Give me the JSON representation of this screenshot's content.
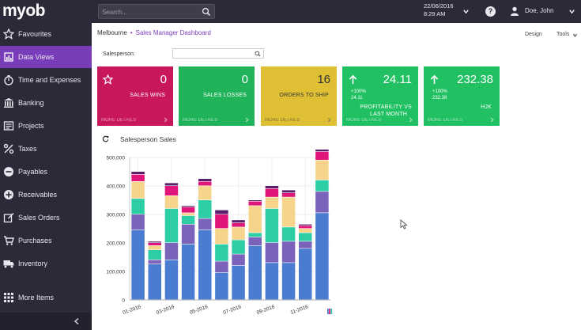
{
  "header": {
    "logo": "myob",
    "search_placeholder": "Search...",
    "date": "22/06/2016",
    "time": "8:29 AM",
    "help_label": "?",
    "user_name": "Doe, John"
  },
  "sidebar": {
    "items": [
      {
        "label": "Favourites",
        "icon": "star-icon"
      },
      {
        "label": "Data Views",
        "icon": "chart-icon",
        "active": true
      },
      {
        "label": "Time and Expenses",
        "icon": "stopwatch-icon"
      },
      {
        "label": "Banking",
        "icon": "bank-icon"
      },
      {
        "label": "Projects",
        "icon": "projects-icon"
      },
      {
        "label": "Taxes",
        "icon": "percent-icon"
      },
      {
        "label": "Payables",
        "icon": "minus-circle-icon"
      },
      {
        "label": "Receivables",
        "icon": "plus-circle-icon"
      },
      {
        "label": "Sales Orders",
        "icon": "edit-icon"
      },
      {
        "label": "Purchases",
        "icon": "cart-icon"
      },
      {
        "label": "Inventory",
        "icon": "truck-icon"
      },
      {
        "label": "More Items",
        "icon": "grid-icon"
      }
    ]
  },
  "breadcrumb": {
    "location": "Melbourne",
    "separator": "•",
    "page": "Sales Manager Dashboard"
  },
  "toolbar": {
    "design_label": "Design",
    "tools_label": "Tools"
  },
  "filter": {
    "salesperson_label": "Salesperson:",
    "salesperson_value": ""
  },
  "kpis": [
    {
      "id": "sales-wins",
      "value": "0",
      "label": "SALES WINS",
      "more": "MORE DETAILS",
      "color": "#c8175d"
    },
    {
      "id": "sales-losses",
      "value": "0",
      "label": "SALES LOSSES",
      "more": "MORE DETAILS",
      "color": "#21b35a"
    },
    {
      "id": "orders",
      "value": "16",
      "label": "ORDERS TO SHIP",
      "more": "MORE DETAILS",
      "color": "#dfc034"
    },
    {
      "id": "profit",
      "value": "24.11",
      "change": "+100%",
      "change_value": "24.11",
      "label_line1": "PROFITABILITY VS",
      "label_line2": "LAST MONTH",
      "more": "MORE DETAILS",
      "color": "#21c062"
    },
    {
      "id": "hjk",
      "value": "232.38",
      "change": "+100%",
      "change_value": "232.38",
      "label": "HJK",
      "more": "MORE DETAILS",
      "color": "#21c062"
    }
  ],
  "chart_title": "Salesperson Sales",
  "chart_data": {
    "type": "bar",
    "stacked": true,
    "x_tick_labels": [
      "01-2016",
      "03-2016",
      "05-2016",
      "07-2016",
      "09-2016",
      "11-2016"
    ],
    "categories": [
      "01-2016",
      "02-2016",
      "03-2016",
      "04-2016",
      "05-2016",
      "06-2016",
      "07-2016",
      "08-2016",
      "09-2016",
      "10-2016",
      "11-2016",
      "12-2016"
    ],
    "ylim": [
      0,
      500000
    ],
    "yticks": [
      0,
      100000,
      200000,
      300000,
      400000,
      500000
    ],
    "ytick_labels": [
      "0",
      "100,000",
      "200,000",
      "300,000",
      "400,000",
      "500,000"
    ],
    "series": [
      {
        "color": "#4a7dd1",
        "values": [
          245000,
          125000,
          140000,
          195000,
          245000,
          95000,
          120000,
          190000,
          130000,
          130000,
          180000,
          305000
        ]
      },
      {
        "color": "#7b62bb",
        "values": [
          55000,
          15000,
          60000,
          70000,
          40000,
          40000,
          40000,
          30000,
          70000,
          75000,
          25000,
          75000
        ]
      },
      {
        "color": "#2dcda6",
        "values": [
          55000,
          35000,
          120000,
          30000,
          65000,
          60000,
          50000,
          15000,
          120000,
          50000,
          30000,
          40000
        ]
      },
      {
        "color": "#f7d48c",
        "values": [
          60000,
          15000,
          45000,
          10000,
          50000,
          55000,
          45000,
          95000,
          40000,
          105000,
          15000,
          70000
        ]
      },
      {
        "color": "#e0157a",
        "values": [
          25000,
          10000,
          35000,
          20000,
          15000,
          50000,
          15000,
          15000,
          30000,
          15000,
          10000,
          30000
        ]
      },
      {
        "color": "#5a1f6a",
        "values": [
          10000,
          5000,
          10000,
          5000,
          10000,
          15000,
          10000,
          5000,
          10000,
          10000,
          5000,
          15000
        ]
      }
    ]
  }
}
